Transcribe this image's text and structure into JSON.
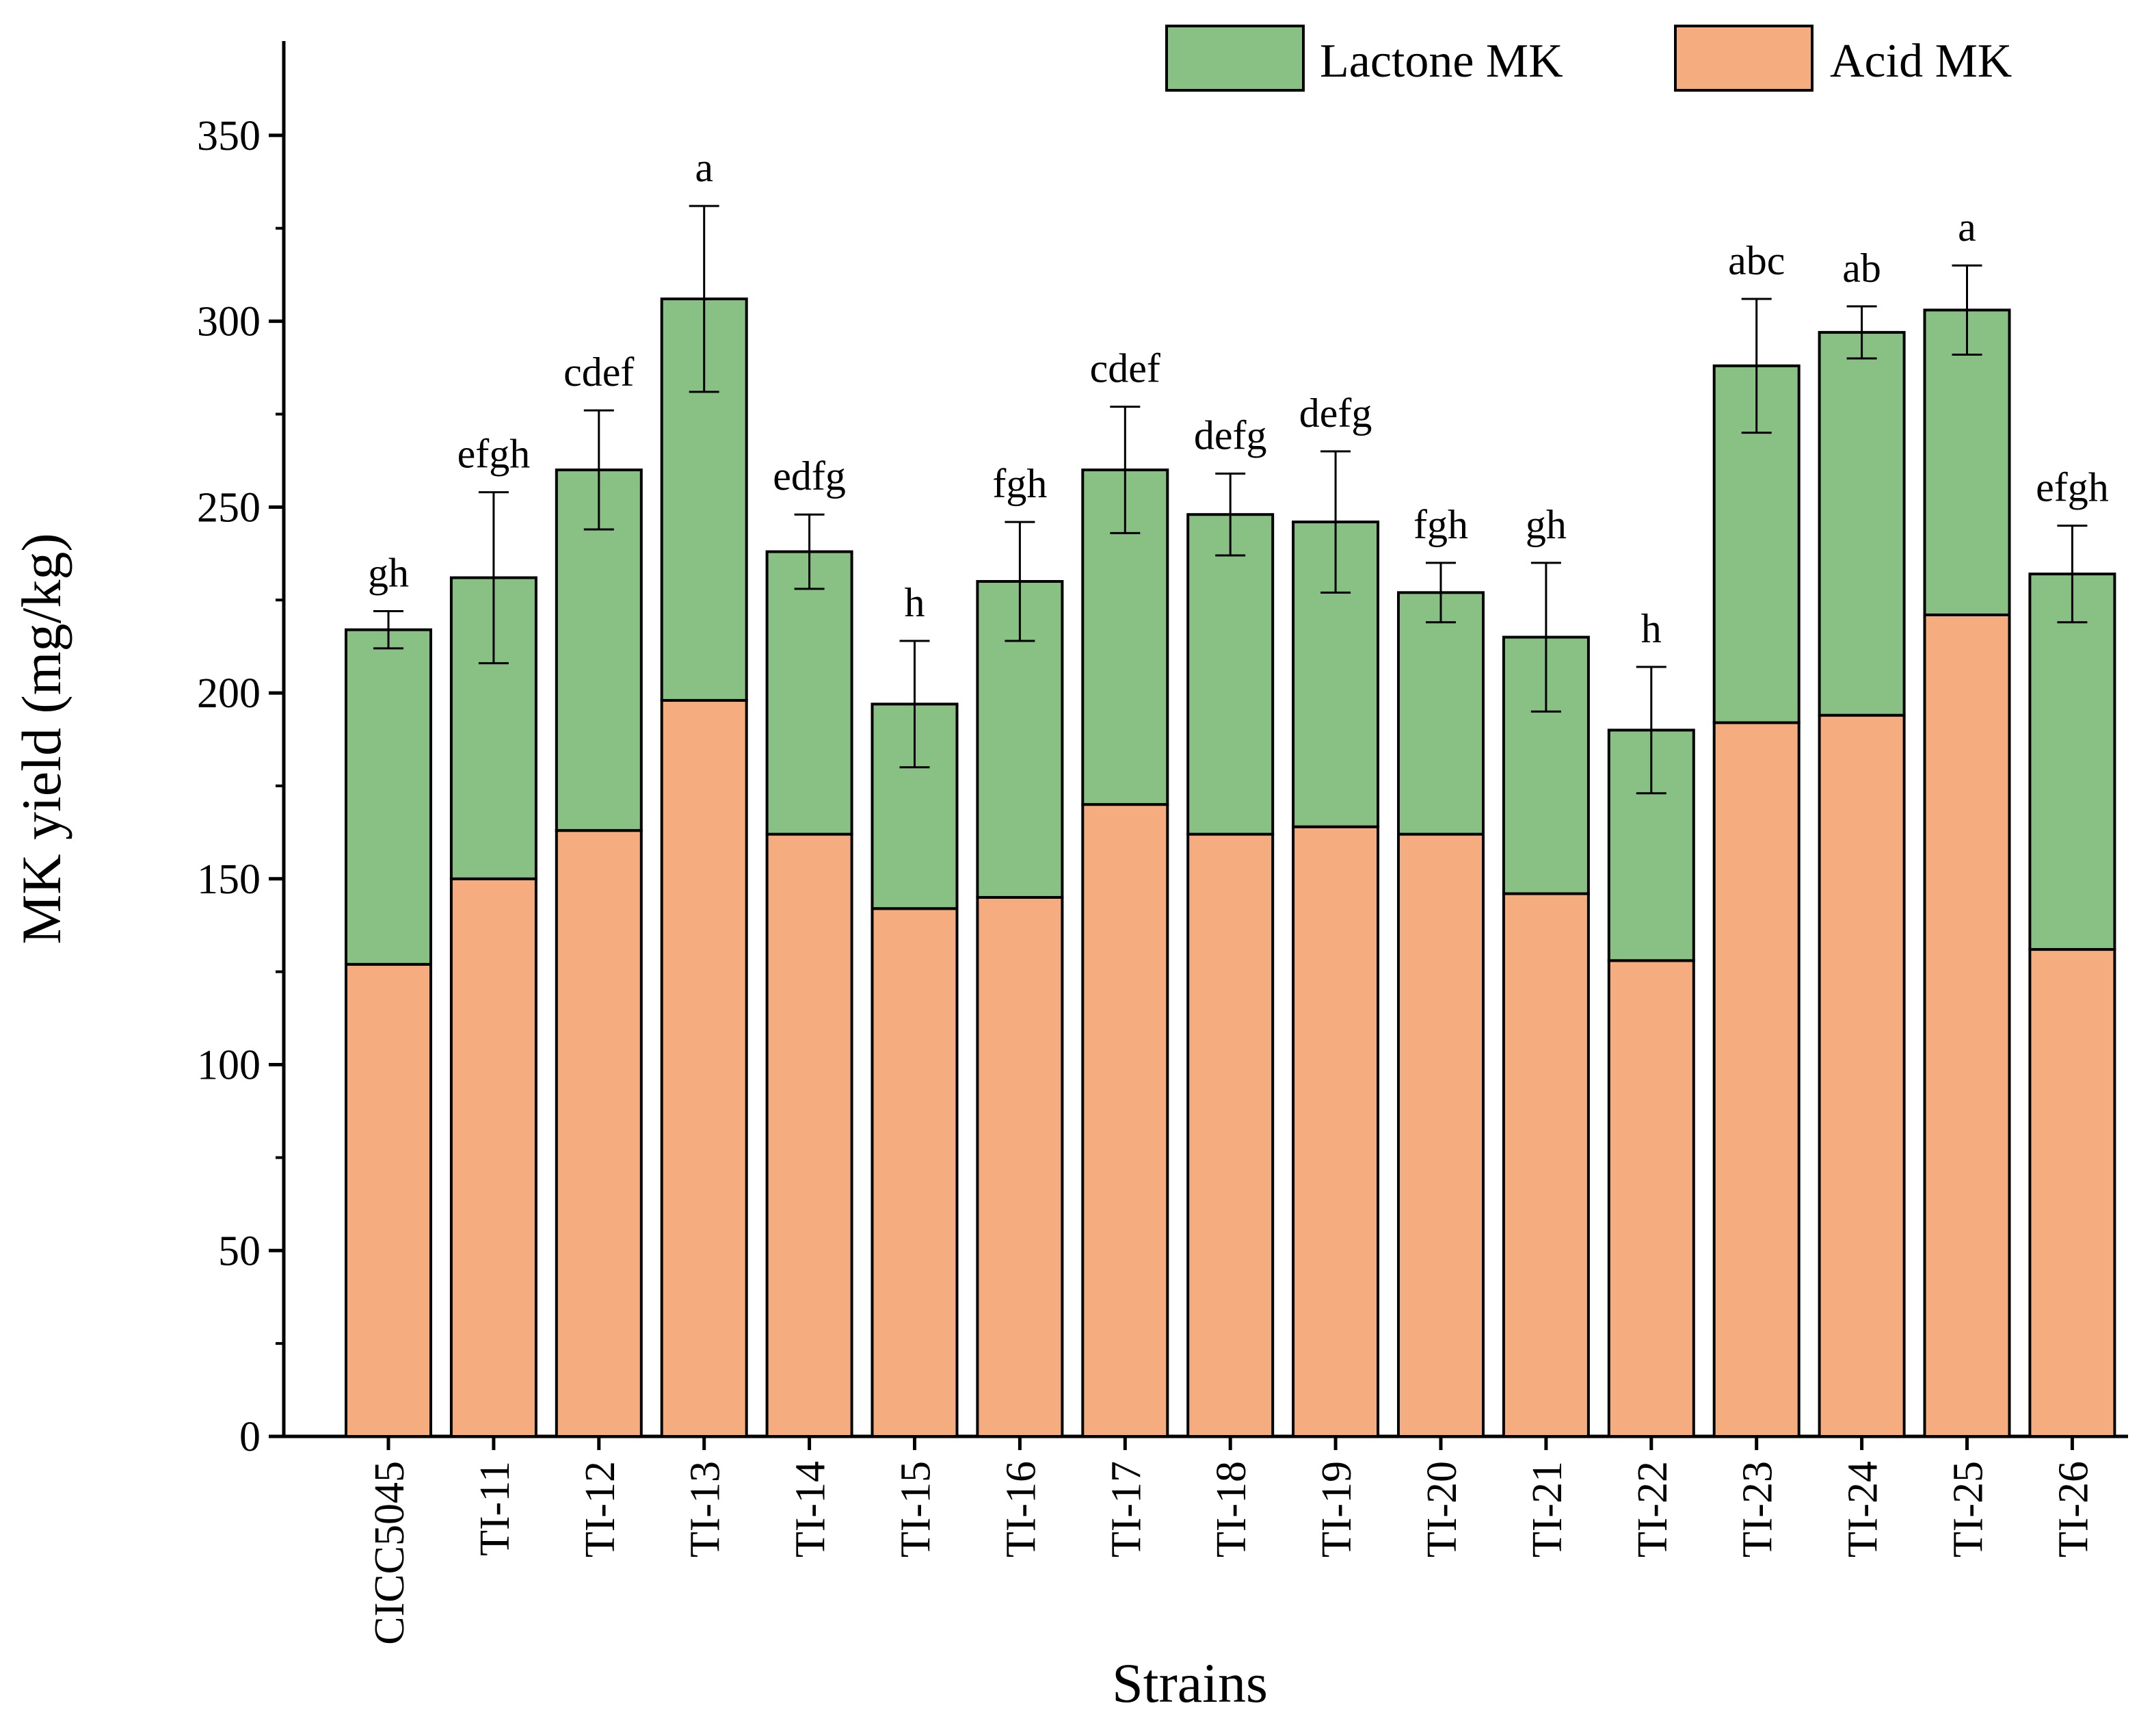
{
  "chart_data": {
    "type": "bar",
    "stacked": true,
    "title": "",
    "xlabel": "Strains",
    "ylabel": "MK yield (mg/kg)",
    "ylim": [
      0,
      375
    ],
    "yticks": [
      0,
      50,
      100,
      150,
      200,
      250,
      300,
      350
    ],
    "legend_position": "top-right",
    "categories": [
      "CICC5045",
      "TI-11",
      "TI-12",
      "TI-13",
      "TI-14",
      "TI-15",
      "TI-16",
      "TI-17",
      "TI-18",
      "TI-19",
      "TI-20",
      "TI-21",
      "TI-22",
      "TI-23",
      "TI-24",
      "TI-25",
      "TI-26"
    ],
    "series": [
      {
        "name": "Acid MK",
        "color": "#f5ad80",
        "values": [
          127,
          150,
          163,
          198,
          162,
          142,
          145,
          170,
          162,
          164,
          162,
          146,
          128,
          192,
          194,
          221,
          131
        ]
      },
      {
        "name": "Lactone MK",
        "color": "#88c183",
        "values": [
          90,
          81,
          97,
          108,
          76,
          55,
          85,
          90,
          86,
          82,
          65,
          69,
          62,
          96,
          103,
          82,
          101
        ]
      }
    ],
    "totals": [
      217,
      231,
      260,
      306,
      238,
      197,
      230,
      260,
      248,
      246,
      227,
      215,
      190,
      288,
      297,
      303,
      232
    ],
    "error_bars": [
      5,
      23,
      16,
      25,
      10,
      17,
      16,
      17,
      11,
      19,
      8,
      20,
      17,
      18,
      7,
      12,
      13
    ],
    "significance_letters": [
      "gh",
      "efgh",
      "cdef",
      "a",
      "edfg",
      "h",
      "fgh",
      "cdef",
      "defg",
      "defg",
      "fgh",
      "gh",
      "h",
      "abc",
      "ab",
      "a",
      "efgh"
    ],
    "colors": {
      "acid": "#f5ad80",
      "lactone": "#88c183",
      "stroke": "#000000"
    }
  }
}
